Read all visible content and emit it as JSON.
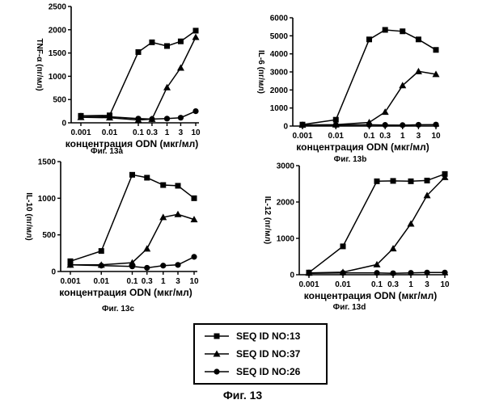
{
  "figure_caption": "Фиг. 13",
  "legend": {
    "items": [
      {
        "label": "SEQ ID NO:13",
        "marker": "square"
      },
      {
        "label": "SEQ ID NO:37",
        "marker": "triangle"
      },
      {
        "label": "SEQ ID NO:26",
        "marker": "circle"
      }
    ]
  },
  "chart_data": [
    {
      "type": "line",
      "caption": "Фиг. 13a",
      "xlabel": "концентрация ODN (мкг/мл)",
      "ylabel": "TNF-α (пг/мл)",
      "x_scale": "log",
      "x_ticks": [
        0.001,
        0.01,
        0.1,
        0.3,
        1,
        3,
        10
      ],
      "x_tick_labels": [
        "0.001",
        "0.01",
        "0.1",
        "0.3",
        "1",
        "3",
        "10"
      ],
      "y_ticks": [
        0,
        500,
        1000,
        1500,
        2000,
        2500
      ],
      "ylim": [
        0,
        2500
      ],
      "grid": false,
      "series": [
        {
          "name": "SEQ ID NO:13",
          "marker": "square",
          "x": [
            0.001,
            0.01,
            0.1,
            0.3,
            1,
            3,
            10
          ],
          "values": [
            150,
            160,
            1520,
            1730,
            1650,
            1750,
            1980
          ]
        },
        {
          "name": "SEQ ID NO:37",
          "marker": "triangle",
          "x": [
            0.001,
            0.01,
            0.1,
            0.3,
            1,
            3,
            10
          ],
          "values": [
            120,
            110,
            60,
            80,
            760,
            1180,
            1840
          ]
        },
        {
          "name": "SEQ ID NO:26",
          "marker": "circle",
          "x": [
            0.001,
            0.01,
            0.1,
            0.3,
            1,
            3,
            10
          ],
          "values": [
            150,
            130,
            90,
            80,
            90,
            110,
            250
          ]
        }
      ]
    },
    {
      "type": "line",
      "caption": "Фиг. 13b",
      "xlabel": "концентрация ODN (мкг/мл)",
      "ylabel": "IL-6 (пг/мл)",
      "x_scale": "log",
      "x_ticks": [
        0.001,
        0.01,
        0.1,
        0.3,
        1,
        3,
        10
      ],
      "x_tick_labels": [
        "0.001",
        "0.01",
        "0.1",
        "0.3",
        "1",
        "3",
        "10"
      ],
      "y_ticks": [
        0,
        1000,
        2000,
        3000,
        4000,
        5000,
        6000
      ],
      "ylim": [
        0,
        6000
      ],
      "grid": false,
      "series": [
        {
          "name": "SEQ ID NO:13",
          "marker": "square",
          "x": [
            0.001,
            0.01,
            0.1,
            0.3,
            1,
            3,
            10
          ],
          "values": [
            80,
            350,
            4800,
            5330,
            5250,
            4800,
            4220
          ]
        },
        {
          "name": "SEQ ID NO:37",
          "marker": "triangle",
          "x": [
            0.001,
            0.01,
            0.1,
            0.3,
            1,
            3,
            10
          ],
          "values": [
            60,
            80,
            200,
            780,
            2250,
            3030,
            2870
          ]
        },
        {
          "name": "SEQ ID NO:26",
          "marker": "circle",
          "x": [
            0.001,
            0.01,
            0.1,
            0.3,
            1,
            3,
            10
          ],
          "values": [
            50,
            60,
            70,
            60,
            50,
            70,
            80
          ]
        }
      ]
    },
    {
      "type": "line",
      "caption": "Фиг. 13c",
      "xlabel": "концентрация ODN (мкг/мл)",
      "ylabel": "IL-10 (пг/мл)",
      "x_scale": "log",
      "x_ticks": [
        0.001,
        0.01,
        0.1,
        0.3,
        1,
        3,
        10
      ],
      "x_tick_labels": [
        "0.001",
        "0.01",
        "0.1",
        "0.3",
        "1",
        "3",
        "10"
      ],
      "y_ticks": [
        0,
        500,
        1000,
        1500
      ],
      "ylim": [
        0,
        1500
      ],
      "grid": false,
      "series": [
        {
          "name": "SEQ ID NO:13",
          "marker": "square",
          "x": [
            0.001,
            0.01,
            0.1,
            0.3,
            1,
            3,
            10
          ],
          "values": [
            140,
            280,
            1320,
            1280,
            1180,
            1170,
            1000
          ]
        },
        {
          "name": "SEQ ID NO:37",
          "marker": "triangle",
          "x": [
            0.001,
            0.01,
            0.1,
            0.3,
            1,
            3,
            10
          ],
          "values": [
            90,
            90,
            120,
            310,
            740,
            780,
            710
          ]
        },
        {
          "name": "SEQ ID NO:26",
          "marker": "circle",
          "x": [
            0.001,
            0.01,
            0.1,
            0.3,
            1,
            3,
            10
          ],
          "values": [
            90,
            80,
            70,
            50,
            80,
            90,
            200
          ]
        }
      ]
    },
    {
      "type": "line",
      "caption": "Фиг. 13d",
      "xlabel": "концентрация ODN (мкг/мл)",
      "ylabel": "IL-12 (пг/мл)",
      "x_scale": "log",
      "x_ticks": [
        0.001,
        0.01,
        0.1,
        0.3,
        1,
        3,
        10
      ],
      "x_tick_labels": [
        "0.001",
        "0.01",
        "0.1",
        "0.3",
        "1",
        "3",
        "10"
      ],
      "y_ticks": [
        0,
        1000,
        2000,
        3000
      ],
      "ylim": [
        0,
        3000
      ],
      "grid": false,
      "series": [
        {
          "name": "SEQ ID NO:13",
          "marker": "square",
          "x": [
            0.001,
            0.01,
            0.1,
            0.3,
            1,
            3,
            10
          ],
          "values": [
            60,
            780,
            2570,
            2580,
            2570,
            2590,
            2770
          ]
        },
        {
          "name": "SEQ ID NO:37",
          "marker": "triangle",
          "x": [
            0.001,
            0.01,
            0.1,
            0.3,
            1,
            3,
            10
          ],
          "values": [
            50,
            70,
            280,
            720,
            1400,
            2180,
            2680
          ]
        },
        {
          "name": "SEQ ID NO:26",
          "marker": "circle",
          "x": [
            0.001,
            0.01,
            0.1,
            0.3,
            1,
            3,
            10
          ],
          "values": [
            40,
            50,
            50,
            40,
            50,
            60,
            60
          ]
        }
      ]
    }
  ]
}
